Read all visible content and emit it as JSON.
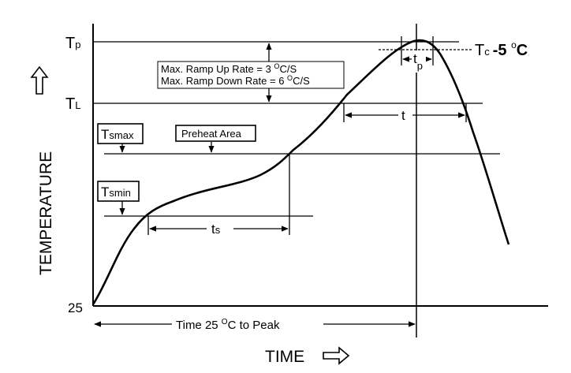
{
  "labels": {
    "tp": "T",
    "tp_sub": "p",
    "tl": "T",
    "tl_sub": "L",
    "tc": "T",
    "tc_sub": "c",
    "tc_delta": "-5 ",
    "tc_unit_sup": "o",
    "tc_unit": "C",
    "ramp_up_pre": "Max. Ramp Up Rate = 3 ",
    "ramp_up_sup": "O",
    "ramp_up_post": "C/S",
    "ramp_down_pre": "Max. Ramp Down Rate = 6 ",
    "ramp_down_sup": "O",
    "ramp_down_post": "C/S",
    "preheat": "Preheat Area",
    "tsmax": "T",
    "tsmax_sub": "smax",
    "tsmin": "T",
    "tsmin_sub": "smin",
    "ts": "t",
    "ts_sub": "s",
    "t": "t",
    "tp_time": "t",
    "tp_time_sub": "p",
    "origin": "25",
    "time_to_peak_pre": "Time 25 ",
    "time_to_peak_sup": "O",
    "time_to_peak_post": "C to Peak",
    "x_axis": "TIME",
    "y_axis": "TEMPERATURE"
  },
  "arrows": {
    "up": "up-arrow-icon",
    "right": "right-arrow-icon"
  }
}
